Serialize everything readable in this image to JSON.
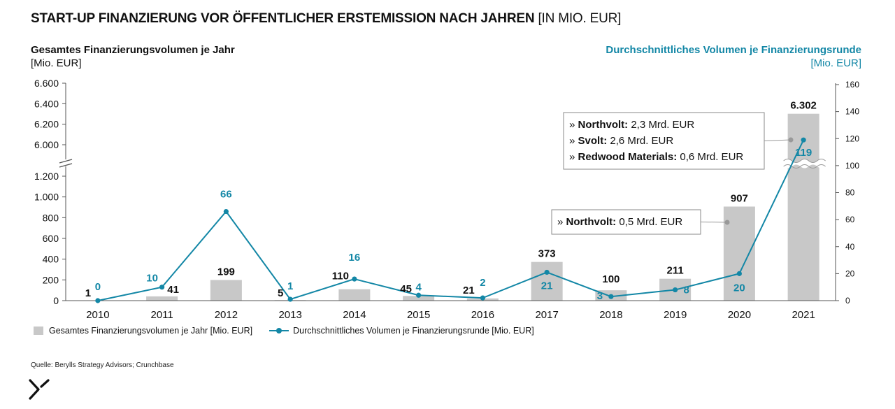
{
  "title": {
    "main": "START-UP FINANZIERUNG VOR ÖFFENTLICHER ERSTEMISSION NACH JAHREN",
    "unit": "[IN MIO. EUR]"
  },
  "left_axis": {
    "title": "Gesamtes Finanzierungsvolumen je Jahr",
    "unit": "[Mio. EUR]"
  },
  "right_axis": {
    "title": "Durchschnittliches Volumen je Finanzierungsrunde",
    "unit": "[Mio. EUR]"
  },
  "colors": {
    "bar": "#c8c8c8",
    "line": "#1387a6",
    "text": "#111111",
    "axis": "#555555",
    "callout_line": "#999999"
  },
  "chart_data": {
    "type": "bar",
    "title": "START-UP FINANZIERUNG VOR ÖFFENTLICHER ERSTEMISSION NACH JAHREN [IN MIO. EUR]",
    "categories": [
      "2010",
      "2011",
      "2012",
      "2013",
      "2014",
      "2015",
      "2016",
      "2017",
      "2018",
      "2019",
      "2020",
      "2021"
    ],
    "series": [
      {
        "name": "Gesamtes Finanzierungsvolumen je Jahr [Mio. EUR]",
        "kind": "bar",
        "axis": "left",
        "values": [
          1,
          41,
          199,
          5,
          110,
          45,
          21,
          373,
          100,
          211,
          907,
          6302
        ],
        "labels": [
          "1",
          "41",
          "199",
          "5",
          "110",
          "45",
          "21",
          "373",
          "100",
          "211",
          "907",
          "6.302"
        ]
      },
      {
        "name": "Durchschnittliches Volumen je Finanzierungsrunde [Mio. EUR]",
        "kind": "line",
        "axis": "right",
        "values": [
          0,
          10,
          66,
          1,
          16,
          4,
          2,
          21,
          3,
          8,
          20,
          119
        ],
        "labels": [
          "0",
          "10",
          "66",
          "1",
          "16",
          "4",
          "2",
          "21",
          "3",
          "8",
          "20",
          "119"
        ]
      }
    ],
    "left_axis": {
      "lower_ticks": [
        0,
        200,
        400,
        600,
        800,
        1000,
        1200
      ],
      "lower_tick_labels": [
        "0",
        "200",
        "400",
        "600",
        "800",
        "1.000",
        "1.200"
      ],
      "upper_ticks": [
        6000,
        6200,
        6400,
        6600
      ],
      "upper_tick_labels": [
        "6.000",
        "6.200",
        "6.400",
        "6.600"
      ],
      "broken": true
    },
    "right_axis": {
      "ticks": [
        0,
        20,
        40,
        60,
        80,
        100,
        120,
        140,
        160
      ],
      "tick_labels": [
        "0",
        "20",
        "40",
        "60",
        "80",
        "100",
        "120",
        "140",
        "160"
      ],
      "ylim": [
        0,
        160
      ]
    },
    "annotations": [
      {
        "year": "2020",
        "items": [
          {
            "name": "Northvolt:",
            "value": "0,5 Mrd. EUR"
          }
        ]
      },
      {
        "year": "2021",
        "items": [
          {
            "name": "Northvolt:",
            "value": "2,3 Mrd. EUR"
          },
          {
            "name": "Svolt:",
            "value": "2,6 Mrd. EUR"
          },
          {
            "name": "Redwood Materials:",
            "value": "0,6 Mrd. EUR"
          }
        ]
      }
    ],
    "legend": [
      "Gesamtes Finanzierungsvolumen je Jahr [Mio. EUR]",
      "Durchschnittliches Volumen je Finanzierungsrunde [Mio. EUR]"
    ],
    "legend_position": "bottom-left"
  },
  "source": "Quelle: Berylls Strategy Advisors; Crunchbase"
}
